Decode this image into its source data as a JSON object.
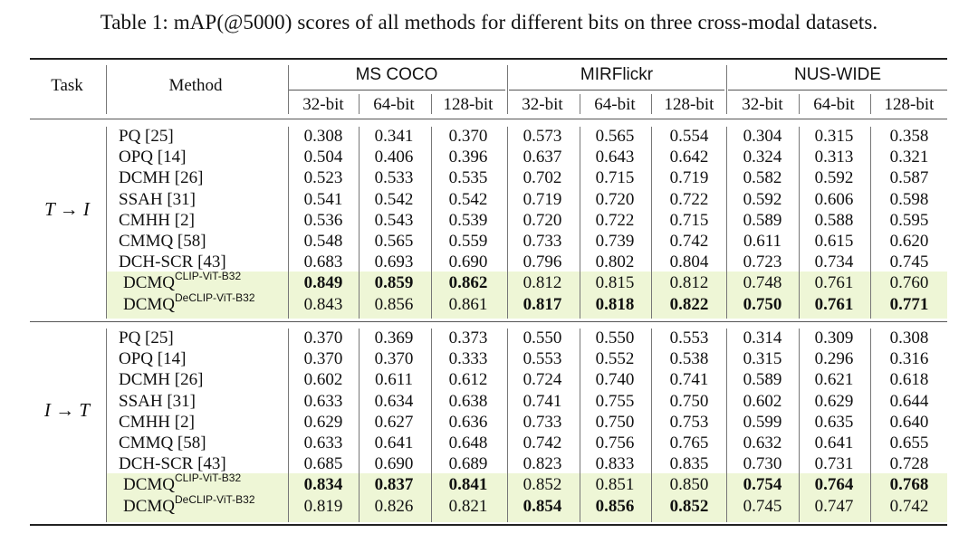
{
  "caption": "Table 1: mAP(@5000) scores of all methods for different bits on three cross-modal datasets.",
  "headers": {
    "task": "Task",
    "method": "Method",
    "datasets": [
      "MS COCO",
      "MIRFlickr",
      "NUS-WIDE"
    ],
    "bits": [
      "32-bit",
      "64-bit",
      "128-bit",
      "32-bit",
      "64-bit",
      "128-bit",
      "32-bit",
      "64-bit",
      "128-bit"
    ]
  },
  "sections": [
    {
      "task": "T → I",
      "rows": [
        {
          "method": "PQ [25]",
          "sup": "",
          "values": [
            "0.308",
            "0.341",
            "0.370",
            "0.573",
            "0.565",
            "0.554",
            "0.304",
            "0.315",
            "0.358"
          ],
          "bold": []
        },
        {
          "method": "OPQ [14]",
          "sup": "",
          "values": [
            "0.504",
            "0.406",
            "0.396",
            "0.637",
            "0.643",
            "0.642",
            "0.324",
            "0.313",
            "0.321"
          ],
          "bold": []
        },
        {
          "method": "DCMH [26]",
          "sup": "",
          "values": [
            "0.523",
            "0.533",
            "0.535",
            "0.702",
            "0.715",
            "0.719",
            "0.582",
            "0.592",
            "0.587"
          ],
          "bold": []
        },
        {
          "method": "SSAH [31]",
          "sup": "",
          "values": [
            "0.541",
            "0.542",
            "0.542",
            "0.719",
            "0.720",
            "0.722",
            "0.592",
            "0.606",
            "0.598"
          ],
          "bold": []
        },
        {
          "method": "CMHH [2]",
          "sup": "",
          "values": [
            "0.536",
            "0.543",
            "0.539",
            "0.720",
            "0.722",
            "0.715",
            "0.589",
            "0.588",
            "0.595"
          ],
          "bold": []
        },
        {
          "method": "CMMQ [58]",
          "sup": "",
          "values": [
            "0.548",
            "0.565",
            "0.559",
            "0.733",
            "0.739",
            "0.742",
            "0.611",
            "0.615",
            "0.620"
          ],
          "bold": []
        },
        {
          "method": "DCH-SCR [43]",
          "sup": "",
          "values": [
            "0.683",
            "0.693",
            "0.690",
            "0.796",
            "0.802",
            "0.804",
            "0.723",
            "0.734",
            "0.745"
          ],
          "bold": []
        },
        {
          "method": "DCMQ",
          "sup": "CLIP-ViT-B32",
          "values": [
            "0.849",
            "0.859",
            "0.862",
            "0.812",
            "0.815",
            "0.812",
            "0.748",
            "0.761",
            "0.760"
          ],
          "bold": [
            0,
            1,
            2
          ]
        },
        {
          "method": "DCMQ",
          "sup": "DeCLIP-ViT-B32",
          "values": [
            "0.843",
            "0.856",
            "0.861",
            "0.817",
            "0.818",
            "0.822",
            "0.750",
            "0.761",
            "0.771"
          ],
          "bold": [
            3,
            4,
            5,
            6,
            7,
            8
          ]
        }
      ]
    },
    {
      "task": "I → T",
      "rows": [
        {
          "method": "PQ [25]",
          "sup": "",
          "values": [
            "0.370",
            "0.369",
            "0.373",
            "0.550",
            "0.550",
            "0.553",
            "0.314",
            "0.309",
            "0.308"
          ],
          "bold": []
        },
        {
          "method": "OPQ [14]",
          "sup": "",
          "values": [
            "0.370",
            "0.370",
            "0.333",
            "0.553",
            "0.552",
            "0.538",
            "0.315",
            "0.296",
            "0.316"
          ],
          "bold": []
        },
        {
          "method": "DCMH [26]",
          "sup": "",
          "values": [
            "0.602",
            "0.611",
            "0.612",
            "0.724",
            "0.740",
            "0.741",
            "0.589",
            "0.621",
            "0.618"
          ],
          "bold": []
        },
        {
          "method": "SSAH [31]",
          "sup": "",
          "values": [
            "0.633",
            "0.634",
            "0.638",
            "0.741",
            "0.755",
            "0.750",
            "0.602",
            "0.629",
            "0.644"
          ],
          "bold": []
        },
        {
          "method": "CMHH [2]",
          "sup": "",
          "values": [
            "0.629",
            "0.627",
            "0.636",
            "0.733",
            "0.750",
            "0.753",
            "0.599",
            "0.635",
            "0.640"
          ],
          "bold": []
        },
        {
          "method": "CMMQ [58]",
          "sup": "",
          "values": [
            "0.633",
            "0.641",
            "0.648",
            "0.742",
            "0.756",
            "0.765",
            "0.632",
            "0.641",
            "0.655"
          ],
          "bold": []
        },
        {
          "method": "DCH-SCR [43]",
          "sup": "",
          "values": [
            "0.685",
            "0.690",
            "0.689",
            "0.823",
            "0.833",
            "0.835",
            "0.730",
            "0.731",
            "0.728"
          ],
          "bold": []
        },
        {
          "method": "DCMQ",
          "sup": "CLIP-ViT-B32",
          "values": [
            "0.834",
            "0.837",
            "0.841",
            "0.852",
            "0.851",
            "0.850",
            "0.754",
            "0.764",
            "0.768"
          ],
          "bold": [
            0,
            1,
            2,
            6,
            7,
            8
          ]
        },
        {
          "method": "DCMQ",
          "sup": "DeCLIP-ViT-B32",
          "values": [
            "0.819",
            "0.826",
            "0.821",
            "0.854",
            "0.856",
            "0.852",
            "0.745",
            "0.747",
            "0.742"
          ],
          "bold": [
            3,
            4,
            5
          ]
        }
      ]
    }
  ]
}
